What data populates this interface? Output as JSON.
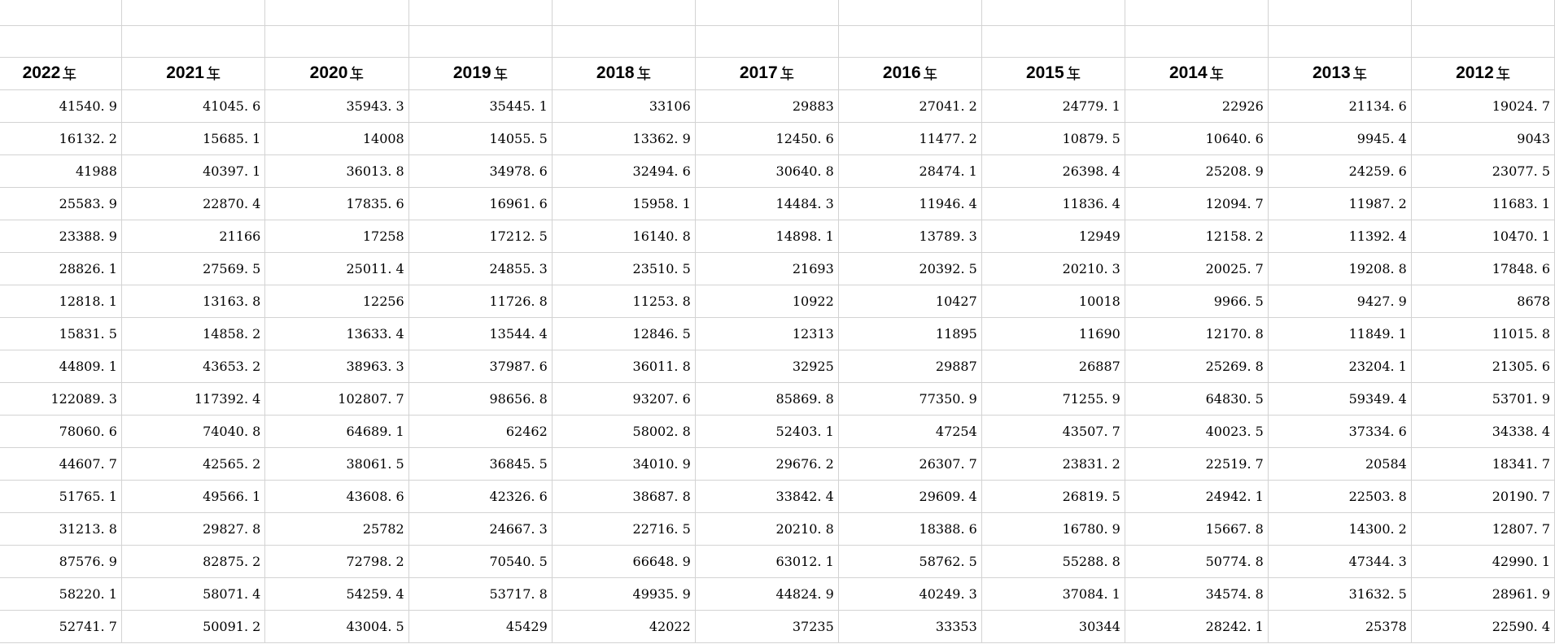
{
  "colors": {
    "background": "#ffffff",
    "gridline": "#d3d3d3",
    "text": "#000000"
  },
  "table": {
    "columns": [
      "2022年",
      "2021年",
      "2020年",
      "2019年",
      "2018年",
      "2017年",
      "2016年",
      "2015年",
      "2014年",
      "2013年",
      "2012年"
    ],
    "rows": [
      [
        "41540.9",
        "41045.6",
        "35943.3",
        "35445.1",
        "33106",
        "29883",
        "27041.2",
        "24779.1",
        "22926",
        "21134.6",
        "19024.7"
      ],
      [
        "16132.2",
        "15685.1",
        "14008",
        "14055.5",
        "13362.9",
        "12450.6",
        "11477.2",
        "10879.5",
        "10640.6",
        "9945.4",
        "9043"
      ],
      [
        "41988",
        "40397.1",
        "36013.8",
        "34978.6",
        "32494.6",
        "30640.8",
        "28474.1",
        "26398.4",
        "25208.9",
        "24259.6",
        "23077.5"
      ],
      [
        "25583.9",
        "22870.4",
        "17835.6",
        "16961.6",
        "15958.1",
        "14484.3",
        "11946.4",
        "11836.4",
        "12094.7",
        "11987.2",
        "11683.1"
      ],
      [
        "23388.9",
        "21166",
        "17258",
        "17212.5",
        "16140.8",
        "14898.1",
        "13789.3",
        "12949",
        "12158.2",
        "11392.4",
        "10470.1"
      ],
      [
        "28826.1",
        "27569.5",
        "25011.4",
        "24855.3",
        "23510.5",
        "21693",
        "20392.5",
        "20210.3",
        "20025.7",
        "19208.8",
        "17848.6"
      ],
      [
        "12818.1",
        "13163.8",
        "12256",
        "11726.8",
        "11253.8",
        "10922",
        "10427",
        "10018",
        "9966.5",
        "9427.9",
        "8678"
      ],
      [
        "15831.5",
        "14858.2",
        "13633.4",
        "13544.4",
        "12846.5",
        "12313",
        "11895",
        "11690",
        "12170.8",
        "11849.1",
        "11015.8"
      ],
      [
        "44809.1",
        "43653.2",
        "38963.3",
        "37987.6",
        "36011.8",
        "32925",
        "29887",
        "26887",
        "25269.8",
        "23204.1",
        "21305.6"
      ],
      [
        "122089.3",
        "117392.4",
        "102807.7",
        "98656.8",
        "93207.6",
        "85869.8",
        "77350.9",
        "71255.9",
        "64830.5",
        "59349.4",
        "53701.9"
      ],
      [
        "78060.6",
        "74040.8",
        "64689.1",
        "62462",
        "58002.8",
        "52403.1",
        "47254",
        "43507.7",
        "40023.5",
        "37334.6",
        "34338.4"
      ],
      [
        "44607.7",
        "42565.2",
        "38061.5",
        "36845.5",
        "34010.9",
        "29676.2",
        "26307.7",
        "23831.2",
        "22519.7",
        "20584",
        "18341.7"
      ],
      [
        "51765.1",
        "49566.1",
        "43608.6",
        "42326.6",
        "38687.8",
        "33842.4",
        "29609.4",
        "26819.5",
        "24942.1",
        "22503.8",
        "20190.7"
      ],
      [
        "31213.8",
        "29827.8",
        "25782",
        "24667.3",
        "22716.5",
        "20210.8",
        "18388.6",
        "16780.9",
        "15667.8",
        "14300.2",
        "12807.7"
      ],
      [
        "87576.9",
        "82875.2",
        "72798.2",
        "70540.5",
        "66648.9",
        "63012.1",
        "58762.5",
        "55288.8",
        "50774.8",
        "47344.3",
        "42990.1"
      ],
      [
        "58220.1",
        "58071.4",
        "54259.4",
        "53717.8",
        "49935.9",
        "44824.9",
        "40249.3",
        "37084.1",
        "34574.8",
        "31632.5",
        "28961.9"
      ],
      [
        "52741.7",
        "50091.2",
        "43004.5",
        "45429",
        "42022",
        "37235",
        "33353",
        "30344",
        "28242.1",
        "25378",
        "22590.4"
      ]
    ]
  }
}
